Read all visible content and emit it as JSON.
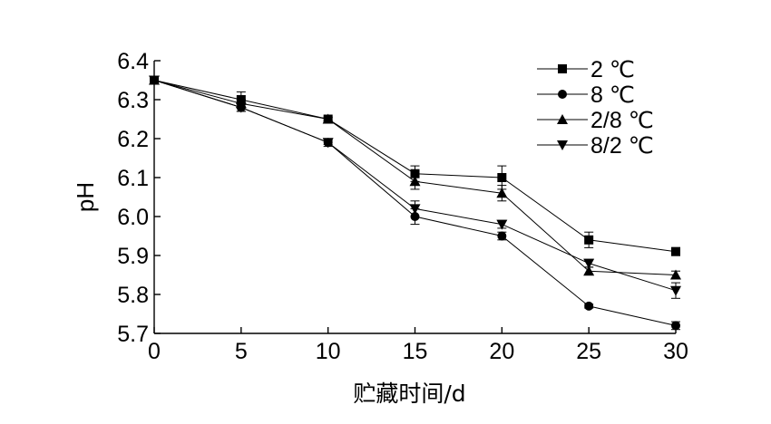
{
  "chart_data": {
    "type": "line",
    "xlabel": "贮藏时间/d",
    "ylabel": "pH",
    "x": [
      0,
      5,
      10,
      15,
      20,
      25,
      30
    ],
    "xlim": [
      0,
      30
    ],
    "ylim": [
      5.7,
      6.4
    ],
    "x_ticks": [
      "0",
      "5",
      "10",
      "15",
      "20",
      "25",
      "30"
    ],
    "y_ticks": [
      "5.7",
      "5.8",
      "5.9",
      "6.0",
      "6.1",
      "6.2",
      "6.3",
      "6.4"
    ],
    "grid": false,
    "legend_position": "top-right",
    "series": [
      {
        "name": "2 ℃",
        "marker": "square",
        "values": [
          6.35,
          6.3,
          6.25,
          6.11,
          6.1,
          5.94,
          5.91
        ],
        "errors": [
          0.01,
          0.02,
          0.005,
          0.02,
          0.03,
          0.02,
          0.01
        ]
      },
      {
        "name": "8 ℃",
        "marker": "circle",
        "values": [
          6.35,
          6.28,
          6.19,
          6.0,
          5.95,
          5.77,
          5.72
        ],
        "errors": [
          0.01,
          0.01,
          0.01,
          0.02,
          0.01,
          0.005,
          0.01
        ]
      },
      {
        "name": "2/8 ℃",
        "marker": "triangle-up",
        "values": [
          6.35,
          6.29,
          6.25,
          6.09,
          6.06,
          5.86,
          5.85
        ],
        "errors": [
          0.01,
          0.01,
          0.005,
          0.02,
          0.02,
          0.01,
          0.01
        ]
      },
      {
        "name": "8/2 ℃",
        "marker": "triangle-down",
        "values": [
          6.35,
          6.28,
          6.19,
          6.02,
          5.98,
          5.88,
          5.81
        ],
        "errors": [
          0.01,
          0.01,
          0.005,
          0.02,
          0.01,
          0.01,
          0.02
        ]
      }
    ]
  }
}
